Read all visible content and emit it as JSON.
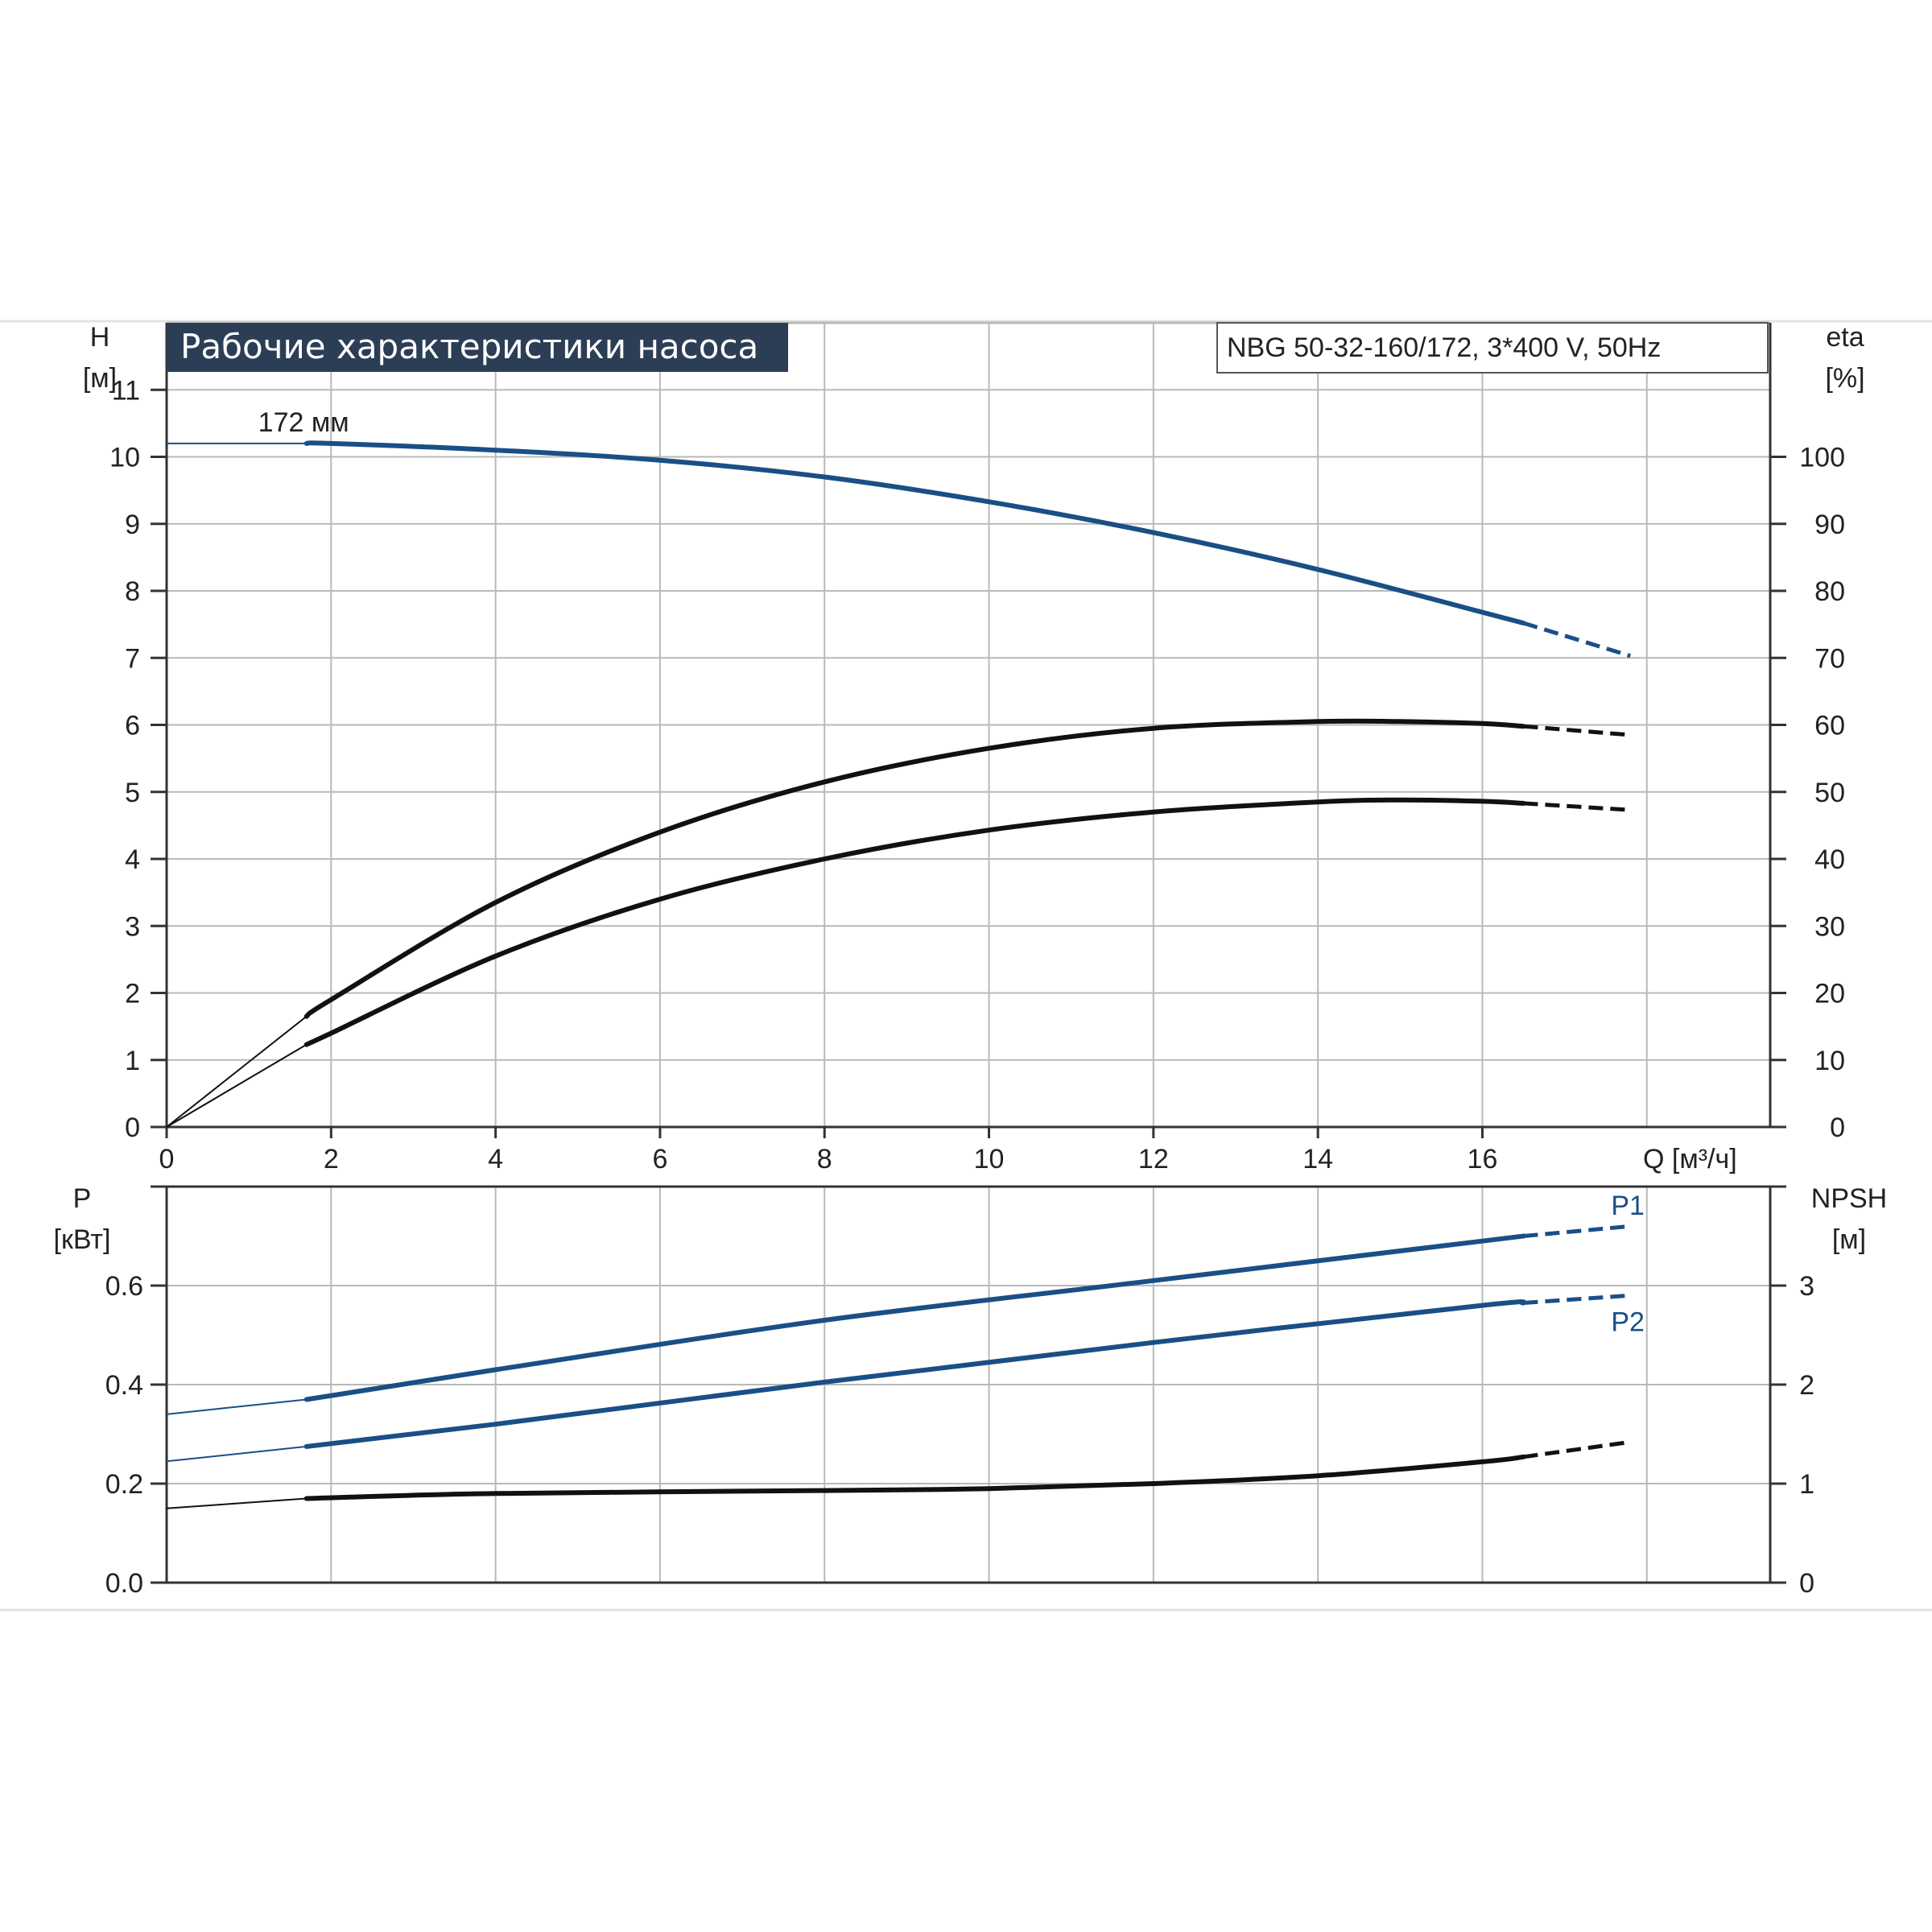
{
  "title": "Рабочие характеристики насоса",
  "model": "NBG 50-32-160/172, 3*400 V, 50Hz",
  "colors": {
    "blue": "#1a4f86",
    "black": "#111111",
    "grid": "#b9b9b9",
    "banner": "#2c3e55"
  },
  "chart_data": [
    {
      "type": "line",
      "panel": "top",
      "xlabel": "Q [м³/ч]",
      "xlim": [
        0,
        19.5
      ],
      "xticks": [
        0,
        2,
        4,
        6,
        8,
        10,
        12,
        14,
        16
      ],
      "ylabel_left": "H\n[м]",
      "ylim_left": [
        0,
        12
      ],
      "yticks_left": [
        0,
        1,
        2,
        3,
        4,
        5,
        6,
        7,
        8,
        9,
        10,
        11
      ],
      "ylabel_right": "eta\n[%]",
      "ylim_right": [
        0,
        120
      ],
      "yticks_right": [
        0,
        10,
        20,
        30,
        40,
        50,
        60,
        70,
        80,
        90,
        100
      ],
      "grid": true,
      "annotations": [
        {
          "text": "172 мм",
          "x": 1.7,
          "y": 10.2
        }
      ],
      "series": [
        {
          "axis": "left",
          "color": "blue",
          "thin": [
            [
              0,
              10.2
            ],
            [
              1.7,
              10.2
            ]
          ],
          "solid": [
            [
              1.7,
              10.2
            ],
            [
              2,
              10.2
            ],
            [
              4,
              10.1
            ],
            [
              6,
              9.95
            ],
            [
              8,
              9.7
            ],
            [
              10,
              9.33
            ],
            [
              12,
              8.87
            ],
            [
              14,
              8.32
            ],
            [
              16,
              7.68
            ],
            [
              16.5,
              7.52
            ]
          ],
          "dashed": [
            [
              16.5,
              7.52
            ],
            [
              17.8,
              7.03
            ]
          ]
        },
        {
          "axis": "right",
          "color": "black",
          "thin": [
            [
              0,
              0
            ],
            [
              1.7,
              16.5
            ]
          ],
          "solid": [
            [
              1.7,
              16.5
            ],
            [
              2,
              19
            ],
            [
              4,
              33.5
            ],
            [
              6,
              44
            ],
            [
              8,
              51.5
            ],
            [
              10,
              56.5
            ],
            [
              12,
              59.5
            ],
            [
              14,
              60.5
            ],
            [
              15,
              60.5
            ],
            [
              16,
              60.2
            ],
            [
              16.5,
              59.8
            ]
          ],
          "dashed": [
            [
              16.5,
              59.8
            ],
            [
              17.8,
              58.5
            ]
          ]
        },
        {
          "axis": "right",
          "color": "black",
          "thin": [
            [
              0,
              0
            ],
            [
              1.7,
              12.3
            ]
          ],
          "solid": [
            [
              1.7,
              12.3
            ],
            [
              2,
              14
            ],
            [
              4,
              25.5
            ],
            [
              6,
              34
            ],
            [
              8,
              40
            ],
            [
              10,
              44.3
            ],
            [
              12,
              47
            ],
            [
              14,
              48.5
            ],
            [
              15,
              48.8
            ],
            [
              16,
              48.6
            ],
            [
              16.5,
              48.3
            ]
          ],
          "dashed": [
            [
              16.5,
              48.3
            ],
            [
              17.8,
              47.3
            ]
          ]
        }
      ]
    },
    {
      "type": "line",
      "panel": "bottom",
      "xlim": [
        0,
        19.5
      ],
      "ylabel_left": "P\n[кВт]",
      "ylim_left": [
        0,
        0.8
      ],
      "yticks_left": [
        "0.0",
        "0.2",
        "0.4",
        "0.6"
      ],
      "ylabel_right": "NPSH\n[м]",
      "ylim_right": [
        0,
        4
      ],
      "yticks_right": [
        0,
        1,
        2,
        3
      ],
      "grid": true,
      "series": [
        {
          "name": "P1",
          "axis": "left",
          "color": "blue",
          "thin": [
            [
              0,
              0.34
            ],
            [
              1.7,
              0.37
            ]
          ],
          "solid": [
            [
              1.7,
              0.37
            ],
            [
              4,
              0.43
            ],
            [
              8,
              0.53
            ],
            [
              12,
              0.61
            ],
            [
              16,
              0.69
            ],
            [
              16.5,
              0.7
            ]
          ],
          "dashed": [
            [
              16.5,
              0.7
            ],
            [
              17.8,
              0.72
            ]
          ]
        },
        {
          "name": "P2",
          "axis": "left",
          "color": "blue",
          "thin": [
            [
              0,
              0.245
            ],
            [
              1.7,
              0.275
            ]
          ],
          "solid": [
            [
              1.7,
              0.275
            ],
            [
              4,
              0.32
            ],
            [
              8,
              0.405
            ],
            [
              12,
              0.485
            ],
            [
              16,
              0.56
            ],
            [
              16.5,
              0.565
            ]
          ],
          "dashed": [
            [
              16.5,
              0.565
            ],
            [
              17.8,
              0.58
            ]
          ]
        },
        {
          "name": "",
          "axis": "right",
          "color": "black",
          "thin": [
            [
              0,
              0.75
            ],
            [
              1.7,
              0.85
            ]
          ],
          "solid": [
            [
              1.7,
              0.85
            ],
            [
              4,
              0.9
            ],
            [
              8,
              0.93
            ],
            [
              10,
              0.95
            ],
            [
              12,
              1.0
            ],
            [
              14,
              1.08
            ],
            [
              16,
              1.22
            ],
            [
              16.5,
              1.27
            ]
          ],
          "dashed": [
            [
              16.5,
              1.27
            ],
            [
              17.8,
              1.42
            ]
          ]
        }
      ]
    }
  ]
}
